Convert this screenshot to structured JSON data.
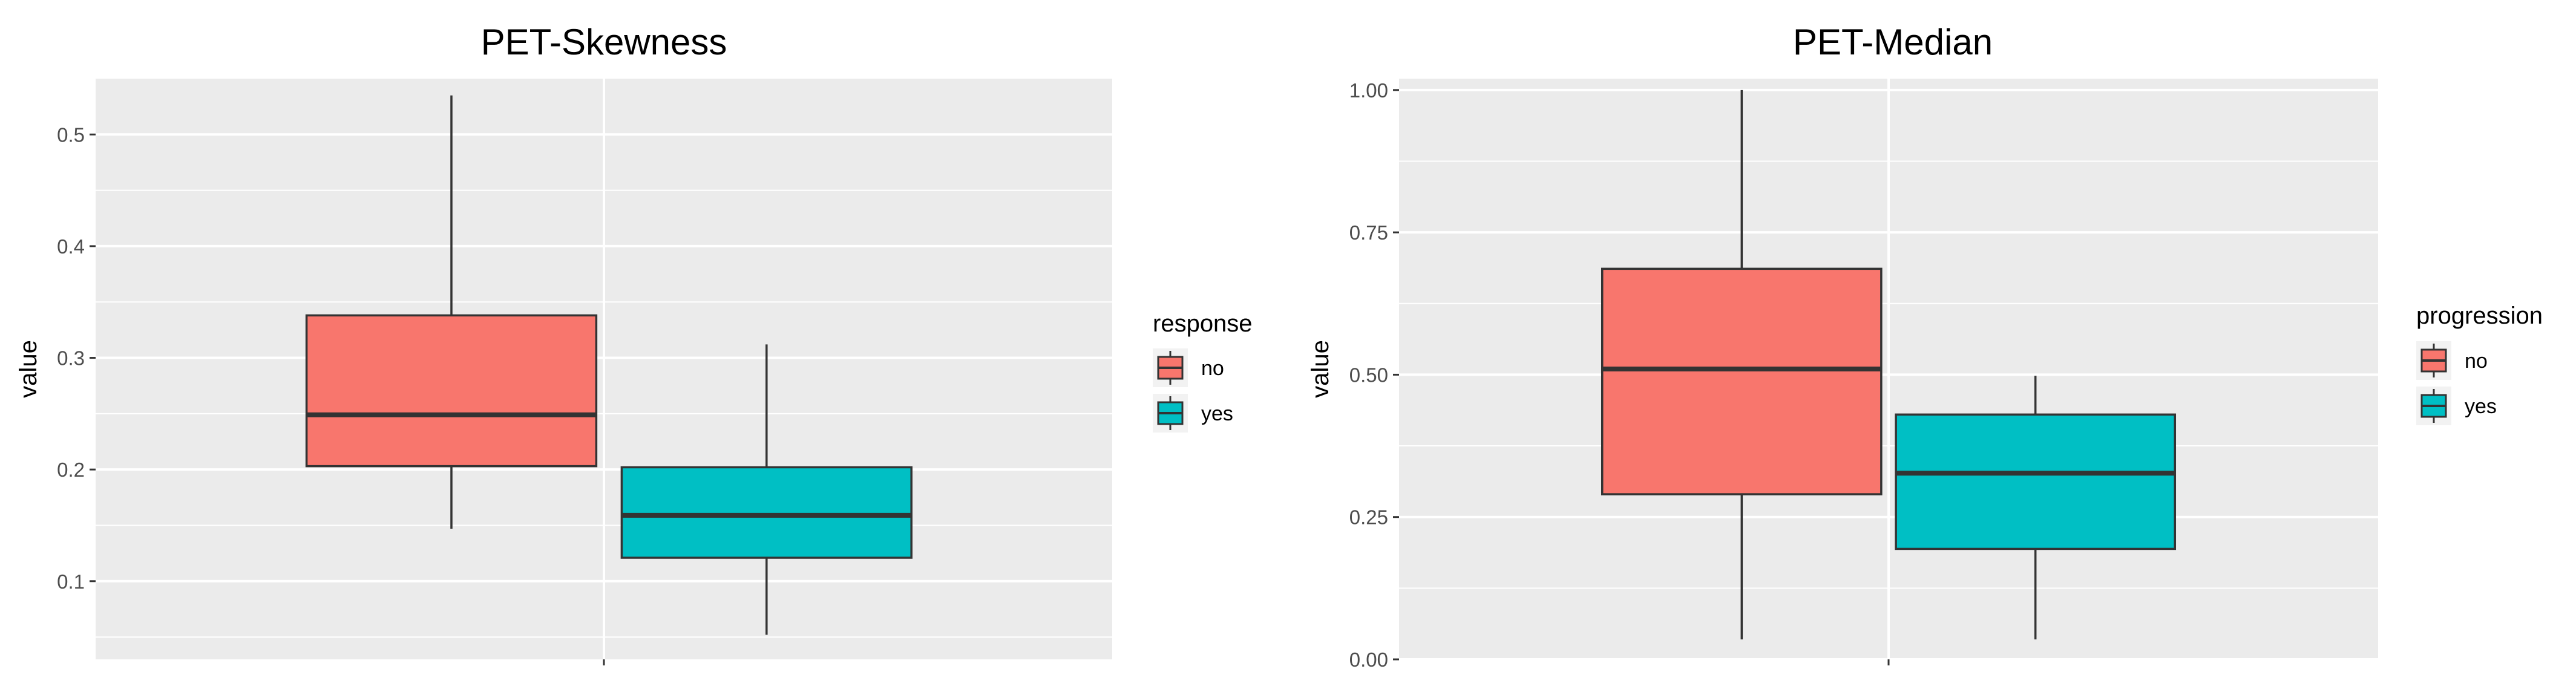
{
  "chart_data": [
    {
      "type": "box",
      "title": "PET-Skewness",
      "xlabel": "",
      "ylabel": "value",
      "ylim": [
        0.03,
        0.55
      ],
      "yticks": [
        0.1,
        0.2,
        0.3,
        0.4,
        0.5
      ],
      "ytick_labels": [
        "0.1",
        "0.2",
        "0.3",
        "0.4",
        "0.5"
      ],
      "legend": {
        "title": "response",
        "position": "right",
        "entries": [
          "no",
          "yes"
        ]
      },
      "series": [
        {
          "name": "no",
          "color": "#F8766D",
          "whisker_low": 0.147,
          "q1": 0.203,
          "median": 0.249,
          "q3": 0.338,
          "whisker_high": 0.535
        },
        {
          "name": "yes",
          "color": "#00BFC4",
          "whisker_low": 0.052,
          "q1": 0.121,
          "median": 0.159,
          "q3": 0.202,
          "whisker_high": 0.312
        }
      ],
      "grid": true
    },
    {
      "type": "box",
      "title": "PET-Median",
      "xlabel": "",
      "ylabel": "value",
      "ylim": [
        0.0,
        1.02
      ],
      "yticks": [
        0.0,
        0.25,
        0.5,
        0.75,
        1.0
      ],
      "ytick_labels": [
        "0.00",
        "0.25",
        "0.50",
        "0.75",
        "1.00"
      ],
      "legend": {
        "title": "progression",
        "position": "right",
        "entries": [
          "no",
          "yes"
        ]
      },
      "series": [
        {
          "name": "no",
          "color": "#F8766D",
          "whisker_low": 0.035,
          "q1": 0.29,
          "median": 0.51,
          "q3": 0.686,
          "whisker_high": 1.0
        },
        {
          "name": "yes",
          "color": "#00BFC4",
          "whisker_low": 0.035,
          "q1": 0.194,
          "median": 0.327,
          "q3": 0.43,
          "whisker_high": 0.498
        }
      ],
      "grid": true
    }
  ]
}
